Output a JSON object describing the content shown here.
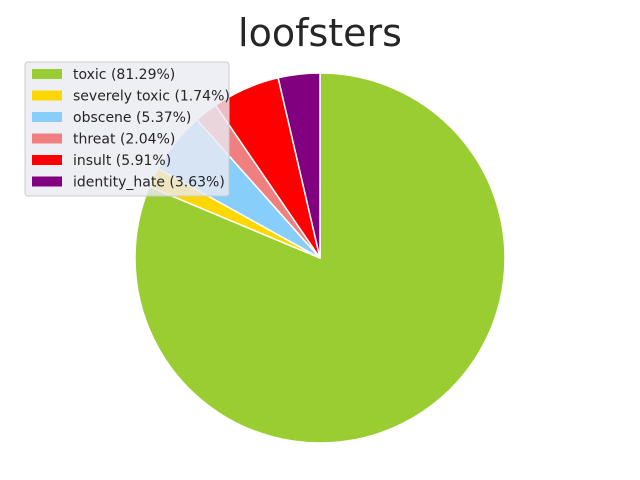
{
  "chart_data": {
    "type": "pie",
    "title": "loofsters",
    "start_angle_deg": 90,
    "direction": "clockwise",
    "legend_position": "top-left",
    "slices": [
      {
        "label": "toxic (81.29%)",
        "value": 81.29,
        "color": "#9ACD32"
      },
      {
        "label": "severely toxic (1.74%)",
        "value": 1.74,
        "color": "#FFD700"
      },
      {
        "label": "obscene (5.37%)",
        "value": 5.37,
        "color": "#87CEFA"
      },
      {
        "label": "threat (2.04%)",
        "value": 2.04,
        "color": "#F08080"
      },
      {
        "label": "insult (5.91%)",
        "value": 5.91,
        "color": "#FF0000"
      },
      {
        "label": "identity_hate (3.63%)",
        "value": 3.63,
        "color": "#800080"
      }
    ]
  }
}
